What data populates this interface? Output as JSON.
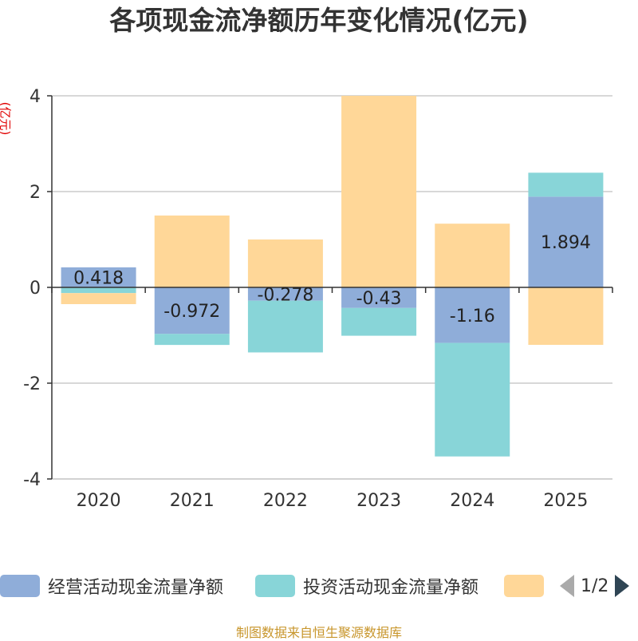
{
  "title": "各项现金流净额历年变化情况(亿元)",
  "unit_label": "(亿元)",
  "legend": {
    "items": [
      {
        "label": "经营活动现金流量净额",
        "color": "#8fadd9"
      },
      {
        "label": "投资活动现金流量净额",
        "color": "#88d5d8"
      },
      {
        "label": "",
        "color": "#ffd798"
      }
    ],
    "page_indicator": "1/2"
  },
  "source": "制图数据来自恒生聚源数据库",
  "chart_data": {
    "type": "bar",
    "stacked": true,
    "title": "各项现金流净额历年变化情况(亿元)",
    "ylabel": "(亿元)",
    "ylim": [
      -4,
      4
    ],
    "yticks": [
      -4,
      -2,
      0,
      2,
      4
    ],
    "categories": [
      "2020",
      "2021",
      "2022",
      "2023",
      "2024",
      "2025"
    ],
    "series": [
      {
        "name": "经营活动现金流量净额",
        "color": "#8fadd9",
        "show_labels": true,
        "values": [
          0.418,
          -0.972,
          -0.278,
          -0.43,
          -1.16,
          1.894
        ],
        "labels": [
          "0.418",
          "-0.972",
          "-0.278",
          "-0.43",
          "-1.16",
          "1.894"
        ]
      },
      {
        "name": "投资活动现金流量净额",
        "color": "#88d5d8",
        "show_labels": false,
        "values": [
          -0.12,
          -0.23,
          -1.08,
          -0.58,
          -2.37,
          0.5
        ]
      },
      {
        "name": "",
        "color": "#ffd798",
        "show_labels": false,
        "values": [
          -0.23,
          1.5,
          1.0,
          4.0,
          1.33,
          -1.2
        ]
      }
    ]
  }
}
